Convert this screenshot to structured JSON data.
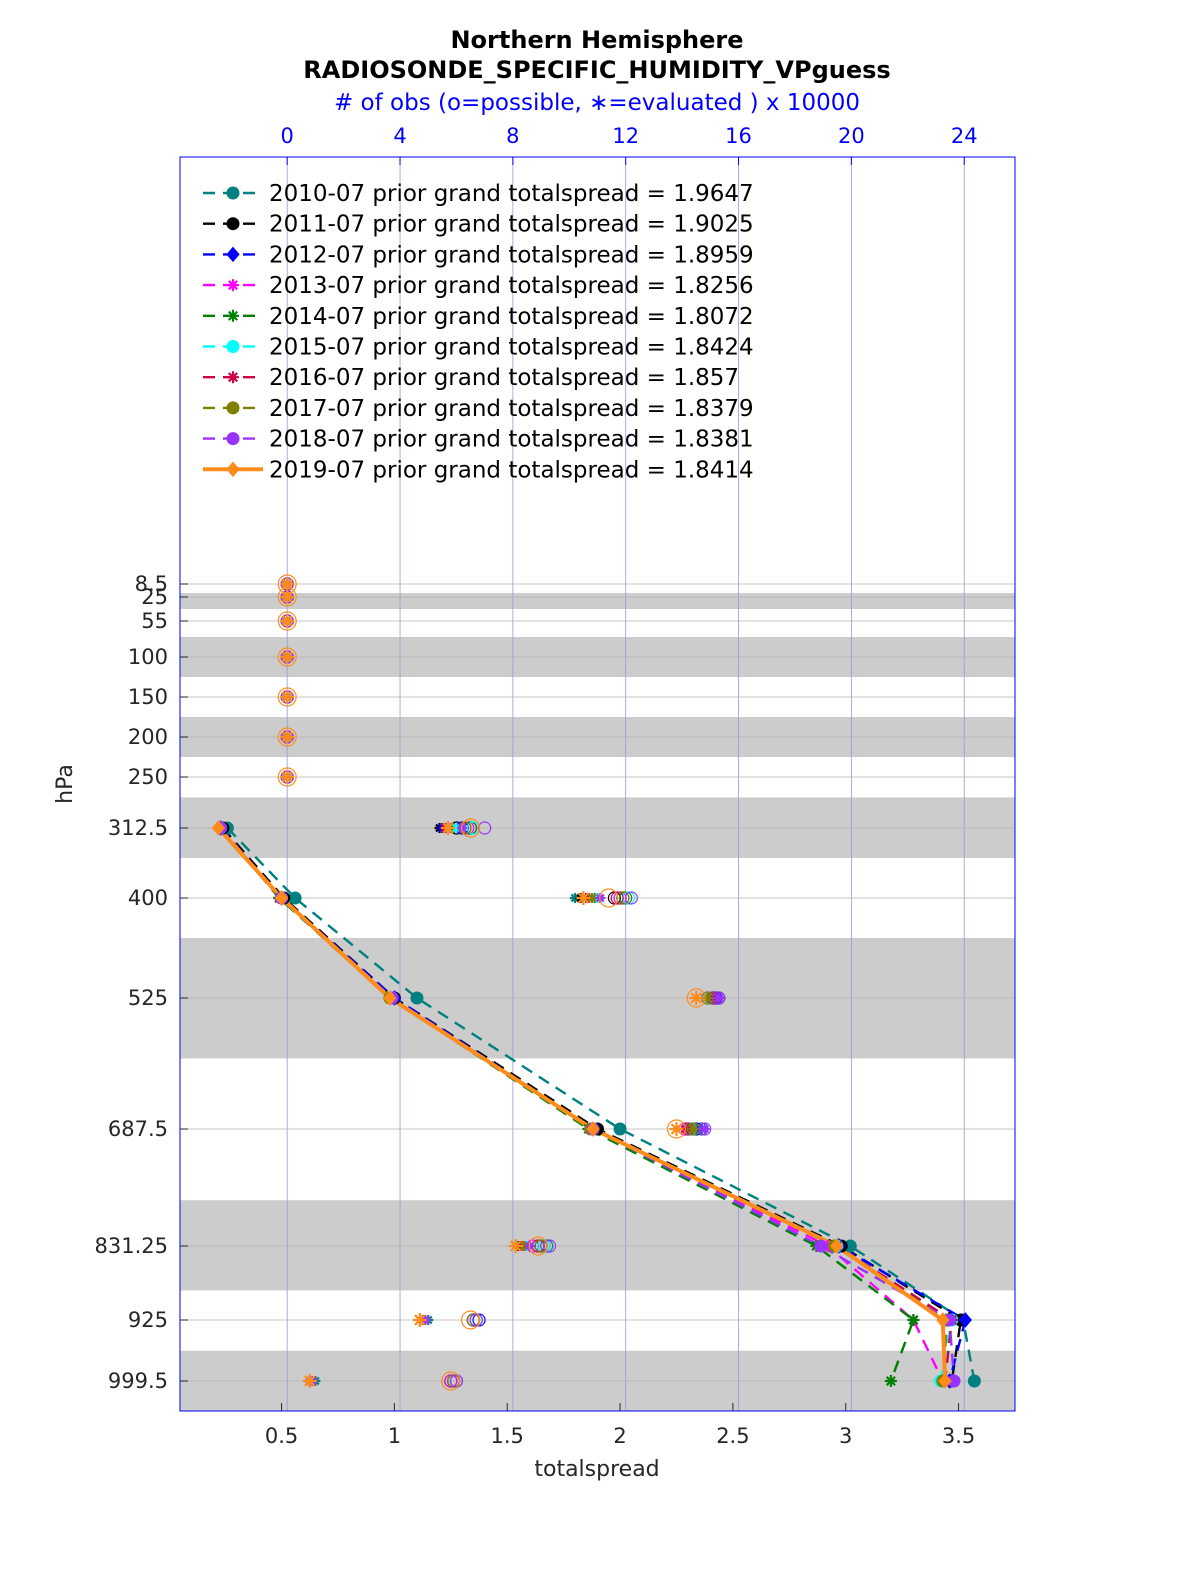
{
  "chart_data": {
    "type": "line",
    "title": "Northern Hemisphere",
    "subtitle": "RADIOSONDE_SPECIFIC_HUMIDITY_VPguess",
    "top_axis_label": "# of obs (o=possible, ∗=evaluated ) x 10000",
    "xlabel": "totalspread",
    "ylabel": "hPa",
    "xlim": [
      0.05,
      3.75
    ],
    "top_xlim": [
      -3.8,
      25.8
    ],
    "x_ticks": [
      0.5,
      1,
      1.5,
      2,
      2.5,
      3,
      3.5
    ],
    "top_ticks": [
      0,
      4,
      8,
      12,
      16,
      20,
      24
    ],
    "y_ticks": [
      "8.5",
      "25",
      "55",
      "100",
      "150",
      "200",
      "250",
      "312.5",
      "400",
      "525",
      "687.5",
      "831.25",
      "925",
      "999.5"
    ],
    "levels": [
      8.5,
      25,
      55,
      100,
      150,
      200,
      250,
      312.5,
      400,
      525,
      687.5,
      831.25,
      925,
      999.5
    ],
    "shaded_bands": [
      [
        20,
        40
      ],
      [
        75,
        125
      ],
      [
        175,
        225
      ],
      [
        275,
        350
      ],
      [
        450,
        600
      ],
      [
        775,
        887.5
      ],
      [
        962.5,
        1037.5
      ]
    ],
    "data_levels": [
      312.5,
      400,
      525,
      687.5,
      831.25,
      925,
      999.5
    ],
    "series": [
      {
        "name": "2010-07 prior grand totalspread = 1.9647",
        "color": "#008080",
        "marker": "circle",
        "style": "dashed",
        "values": [
          0.26,
          0.56,
          1.1,
          2.0,
          3.02,
          3.52,
          3.57
        ]
      },
      {
        "name": "2011-07 prior grand totalspread = 1.9025",
        "color": "#000000",
        "marker": "circle",
        "style": "dashed",
        "values": [
          0.24,
          0.51,
          1.0,
          1.9,
          2.98,
          3.51,
          3.47
        ]
      },
      {
        "name": "2012-07 prior grand totalspread = 1.8959",
        "color": "#0000ff",
        "marker": "diamond",
        "style": "dashed",
        "values": [
          0.23,
          0.5,
          1.0,
          1.88,
          2.97,
          3.53,
          3.46
        ]
      },
      {
        "name": "2013-07 prior grand totalspread = 1.8256",
        "color": "#ff00ff",
        "marker": "star",
        "style": "dashed",
        "values": [
          0.23,
          0.49,
          0.98,
          1.87,
          2.92,
          3.3,
          3.43
        ]
      },
      {
        "name": "2014-07 prior grand totalspread = 1.8072",
        "color": "#008000",
        "marker": "star",
        "style": "dashed",
        "values": [
          0.23,
          0.49,
          0.98,
          1.86,
          2.87,
          3.3,
          3.2
        ]
      },
      {
        "name": "2015-07 prior grand totalspread = 1.8424",
        "color": "#00ffff",
        "marker": "circle",
        "style": "dashed",
        "values": [
          0.23,
          0.5,
          0.99,
          1.88,
          2.96,
          3.47,
          3.42
        ]
      },
      {
        "name": "2016-07 prior grand totalspread = 1.857",
        "color": "#cc0044",
        "marker": "star",
        "style": "dashed",
        "values": [
          0.23,
          0.5,
          0.99,
          1.88,
          2.96,
          3.47,
          3.44
        ]
      },
      {
        "name": "2017-07 prior grand totalspread = 1.8379",
        "color": "#808000",
        "marker": "circle",
        "style": "dashed",
        "values": [
          0.23,
          0.5,
          0.98,
          1.87,
          2.95,
          3.45,
          3.43
        ]
      },
      {
        "name": "2018-07 prior grand totalspread = 1.8381",
        "color": "#9933ff",
        "marker": "circle",
        "style": "dashed",
        "values": [
          0.23,
          0.5,
          0.99,
          1.88,
          2.89,
          3.46,
          3.48
        ]
      },
      {
        "name": "2019-07 prior grand totalspread = 1.8414",
        "color": "#ff8c1a",
        "marker": "diamond",
        "style": "solid",
        "values": [
          0.22,
          0.5,
          0.98,
          1.88,
          2.96,
          3.43,
          3.44
        ]
      }
    ],
    "obs_count_levels": [
      8.5,
      25,
      55,
      100,
      150,
      200,
      250,
      312.5,
      400,
      525,
      687.5,
      831.25,
      925,
      999.5
    ],
    "obs_possible": [
      [
        0,
        0,
        0,
        0,
        0,
        0,
        0,
        6.5,
        11.8,
        15.0,
        14.7,
        9.2,
        6.6,
        5.9
      ],
      [
        0,
        0,
        0,
        0,
        0,
        0,
        0,
        6.0,
        11.6,
        15.3,
        14.3,
        9.0,
        6.7,
        5.8
      ],
      [
        0,
        0,
        0,
        0,
        0,
        0,
        0,
        6.2,
        11.9,
        15.2,
        14.5,
        9.1,
        6.8,
        6.0
      ],
      [
        0,
        0,
        0,
        0,
        0,
        0,
        0,
        6.4,
        11.8,
        14.9,
        14.1,
        8.7,
        6.6,
        5.8
      ],
      [
        0,
        0,
        0,
        0,
        0,
        0,
        0,
        6.5,
        12.0,
        15.1,
        14.4,
        9.0,
        6.6,
        5.9
      ],
      [
        0,
        0,
        0,
        0,
        0,
        0,
        0,
        6.6,
        12.1,
        15.0,
        14.3,
        9.1,
        6.7,
        6.0
      ],
      [
        0,
        0,
        0,
        0,
        0,
        0,
        0,
        6.3,
        11.7,
        15.1,
        14.2,
        8.9,
        6.6,
        5.9
      ],
      [
        0,
        0,
        0,
        0,
        0,
        0,
        0,
        6.3,
        11.9,
        14.9,
        14.4,
        9.0,
        6.6,
        5.9
      ],
      [
        0,
        0,
        0,
        0,
        0,
        0,
        0,
        7.0,
        12.2,
        15.3,
        14.8,
        9.3,
        6.7,
        6.0
      ],
      [
        0,
        0,
        0,
        0,
        0,
        0,
        0,
        6.5,
        11.4,
        14.5,
        13.8,
        8.9,
        6.5,
        5.8
      ]
    ],
    "obs_evaluated": [
      [
        0,
        0,
        0,
        0,
        0,
        0,
        0,
        5.5,
        10.2,
        15.0,
        14.7,
        8.5,
        5.0,
        1.0
      ],
      [
        0,
        0,
        0,
        0,
        0,
        0,
        0,
        5.4,
        10.4,
        15.3,
        14.3,
        8.2,
        4.8,
        0.8
      ],
      [
        0,
        0,
        0,
        0,
        0,
        0,
        0,
        5.5,
        10.6,
        15.2,
        14.5,
        8.4,
        4.9,
        0.9
      ],
      [
        0,
        0,
        0,
        0,
        0,
        0,
        0,
        5.8,
        10.7,
        14.9,
        14.1,
        8.3,
        4.9,
        0.9
      ],
      [
        0,
        0,
        0,
        0,
        0,
        0,
        0,
        5.9,
        10.9,
        15.1,
        14.4,
        8.4,
        4.8,
        0.9
      ],
      [
        0,
        0,
        0,
        0,
        0,
        0,
        0,
        6.0,
        11.0,
        15.0,
        14.3,
        8.5,
        4.9,
        0.9
      ],
      [
        0,
        0,
        0,
        0,
        0,
        0,
        0,
        5.6,
        10.6,
        15.1,
        14.2,
        8.3,
        4.8,
        0.8
      ],
      [
        0,
        0,
        0,
        0,
        0,
        0,
        0,
        5.7,
        10.8,
        14.9,
        14.4,
        8.4,
        4.8,
        0.9
      ],
      [
        0,
        0,
        0,
        0,
        0,
        0,
        0,
        6.2,
        11.1,
        15.3,
        14.8,
        8.6,
        4.9,
        0.9
      ],
      [
        0,
        0,
        0,
        0,
        0,
        0,
        0,
        5.7,
        10.5,
        14.5,
        13.8,
        8.1,
        4.7,
        0.8
      ]
    ],
    "legend_position": "top-left",
    "grid": true
  }
}
